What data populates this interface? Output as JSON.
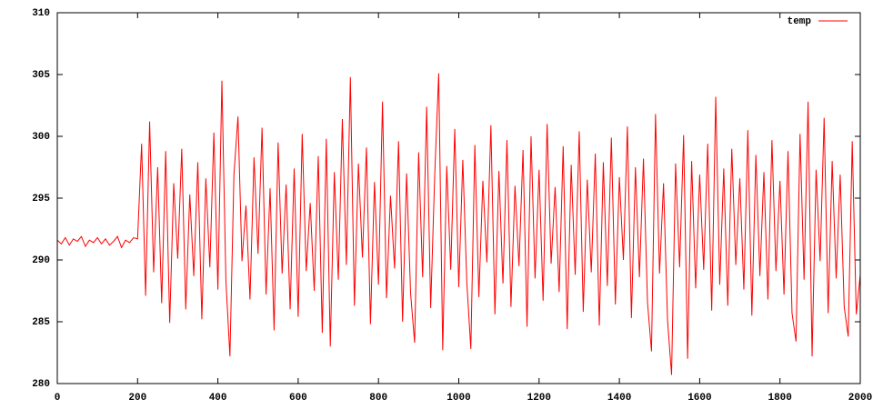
{
  "chart_data": {
    "type": "line",
    "x": [
      0,
      10,
      20,
      30,
      40,
      50,
      60,
      70,
      80,
      90,
      100,
      110,
      120,
      130,
      140,
      150,
      160,
      170,
      180,
      190,
      200,
      210,
      220,
      230,
      240,
      250,
      260,
      270,
      280,
      290,
      300,
      310,
      320,
      330,
      340,
      350,
      360,
      370,
      380,
      390,
      400,
      410,
      420,
      430,
      440,
      450,
      460,
      470,
      480,
      490,
      500,
      510,
      520,
      530,
      540,
      550,
      560,
      570,
      580,
      590,
      600,
      610,
      620,
      630,
      640,
      650,
      660,
      670,
      680,
      690,
      700,
      710,
      720,
      730,
      740,
      750,
      760,
      770,
      780,
      790,
      800,
      810,
      820,
      830,
      840,
      850,
      860,
      870,
      880,
      890,
      900,
      910,
      920,
      930,
      940,
      950,
      960,
      970,
      980,
      990,
      1000,
      1010,
      1020,
      1030,
      1040,
      1050,
      1060,
      1070,
      1080,
      1090,
      1100,
      1110,
      1120,
      1130,
      1140,
      1150,
      1160,
      1170,
      1180,
      1190,
      1200,
      1210,
      1220,
      1230,
      1240,
      1250,
      1260,
      1270,
      1280,
      1290,
      1300,
      1310,
      1320,
      1330,
      1340,
      1350,
      1360,
      1370,
      1380,
      1390,
      1400,
      1410,
      1420,
      1430,
      1440,
      1450,
      1460,
      1470,
      1480,
      1490,
      1500,
      1510,
      1520,
      1530,
      1540,
      1550,
      1560,
      1570,
      1580,
      1590,
      1600,
      1610,
      1620,
      1630,
      1640,
      1650,
      1660,
      1670,
      1680,
      1690,
      1700,
      1710,
      1720,
      1730,
      1740,
      1750,
      1760,
      1770,
      1780,
      1790,
      1800,
      1810,
      1820,
      1830,
      1840,
      1850,
      1860,
      1870,
      1880,
      1890,
      1900,
      1910,
      1920,
      1930,
      1940,
      1950,
      1960,
      1970,
      1980,
      1990,
      2000
    ],
    "series": [
      {
        "name": "temp",
        "color": "#ff0000",
        "values": [
          291.6,
          291.3,
          291.8,
          291.2,
          291.7,
          291.5,
          291.9,
          291.1,
          291.6,
          291.4,
          291.8,
          291.3,
          291.7,
          291.2,
          291.5,
          291.9,
          291.0,
          291.6,
          291.4,
          291.8,
          291.7,
          299.4,
          287.1,
          301.2,
          289.0,
          297.5,
          286.5,
          298.8,
          284.9,
          296.2,
          290.1,
          299.0,
          286.0,
          295.3,
          288.7,
          297.9,
          285.2,
          296.6,
          289.4,
          300.3,
          287.6,
          304.5,
          288.3,
          282.2,
          296.9,
          301.6,
          289.9,
          294.4,
          286.8,
          298.3,
          290.5,
          300.7,
          287.2,
          295.8,
          284.3,
          299.5,
          288.9,
          296.1,
          286.0,
          297.4,
          285.4,
          300.2,
          289.1,
          294.6,
          287.5,
          298.4,
          284.1,
          299.8,
          283.0,
          297.1,
          288.4,
          301.4,
          289.6,
          304.8,
          286.3,
          297.8,
          290.2,
          299.1,
          284.8,
          296.3,
          288.0,
          302.8,
          286.9,
          295.2,
          289.3,
          299.6,
          285.0,
          297.0,
          287.3,
          283.3,
          298.7,
          288.6,
          302.4,
          286.1,
          296.8,
          305.1,
          282.7,
          297.6,
          289.2,
          300.6,
          287.8,
          298.1,
          288.2,
          282.8,
          299.3,
          287.0,
          296.4,
          289.8,
          300.9,
          285.6,
          297.2,
          288.1,
          299.7,
          286.2,
          296.0,
          289.5,
          298.9,
          284.6,
          300.0,
          288.5,
          297.3,
          286.7,
          301.0,
          289.7,
          295.9,
          287.4,
          299.2,
          284.4,
          297.7,
          288.8,
          300.4,
          285.8,
          296.5,
          289.0,
          298.6,
          284.7,
          297.9,
          287.9,
          299.9,
          286.4,
          296.7,
          290.0,
          300.8,
          285.3,
          297.5,
          288.6,
          298.2,
          286.6,
          282.6,
          301.8,
          288.9,
          296.2,
          285.1,
          280.7,
          297.8,
          289.4,
          300.1,
          282.0,
          298.0,
          287.7,
          296.9,
          289.2,
          299.4,
          285.9,
          303.2,
          288.0,
          297.4,
          286.3,
          299.0,
          289.6,
          296.6,
          287.6,
          300.5,
          285.5,
          298.5,
          288.7,
          297.1,
          286.8,
          299.7,
          289.1,
          296.4,
          287.2,
          298.8,
          285.7,
          283.4,
          300.2,
          288.4,
          302.8,
          282.2,
          297.3,
          289.9,
          301.5,
          285.7,
          298.0,
          288.5,
          296.9,
          286.2,
          283.8,
          299.6,
          285.6,
          288.8
        ]
      }
    ],
    "xlim": [
      0,
      2000
    ],
    "xticks": [
      0,
      200,
      400,
      600,
      800,
      1000,
      1200,
      1400,
      1600,
      1800,
      2000
    ],
    "ylim": [
      280,
      310
    ],
    "yticks": [
      280,
      285,
      290,
      295,
      300,
      305,
      310
    ],
    "grid": false,
    "legend": "top-right"
  }
}
